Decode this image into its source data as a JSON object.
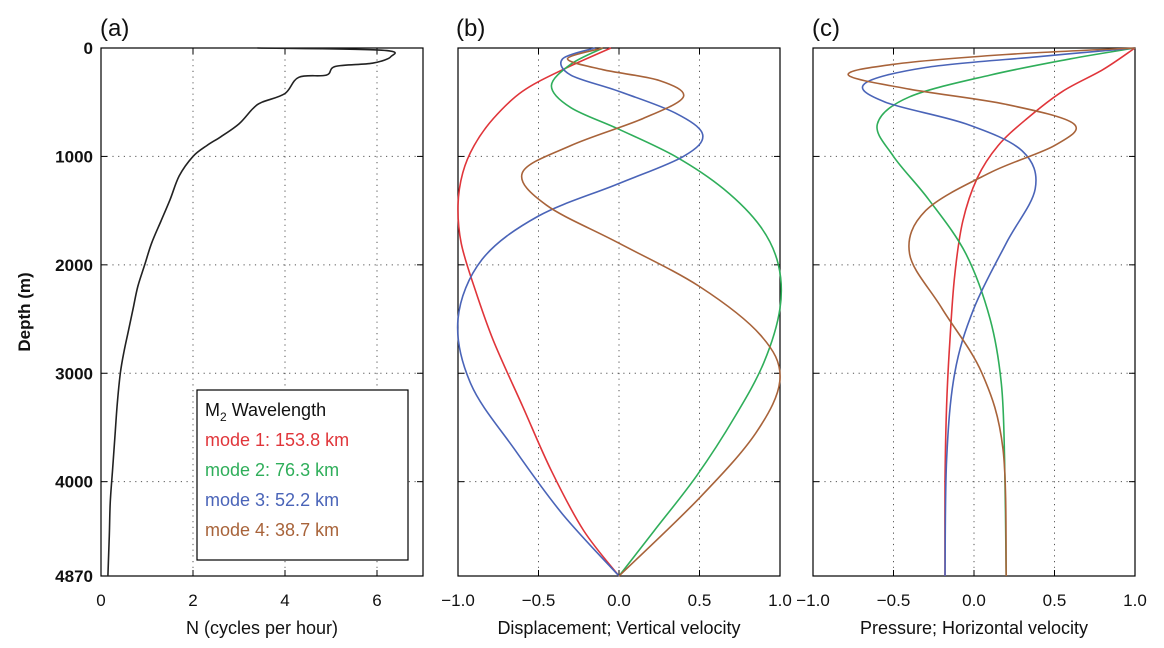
{
  "chart_data": [
    {
      "type": "line",
      "panel_label": "(a)",
      "xlabel": "N (cycles per hour)",
      "ylabel": "Depth (m)",
      "xlim": [
        0,
        7
      ],
      "ylim": [
        4870,
        0
      ],
      "x_ticks": [
        "0",
        "2",
        "4",
        "6"
      ],
      "x_tick_values": [
        0,
        2,
        4,
        6
      ],
      "y_ticks": [
        "0",
        "1000",
        "2000",
        "3000",
        "4000",
        "4870"
      ],
      "y_tick_values": [
        0,
        1000,
        2000,
        3000,
        4000,
        4870
      ],
      "grid": true,
      "series": [
        {
          "color": "#222222",
          "x": [
            3.4,
            6.1,
            6.3,
            5.9,
            5.1,
            4.9,
            4.3,
            4.0,
            3.5,
            3.3,
            3.0,
            2.6,
            2.3,
            2.0,
            1.7,
            1.5,
            1.3,
            1.1,
            0.95,
            0.8,
            0.7,
            0.6,
            0.5,
            0.42,
            0.35,
            0.3,
            0.25,
            0.2,
            0.18,
            0.15
          ],
          "y": [
            0,
            20,
            80,
            140,
            170,
            250,
            270,
            420,
            500,
            560,
            700,
            820,
            900,
            1000,
            1180,
            1400,
            1600,
            1800,
            2000,
            2200,
            2400,
            2600,
            2800,
            3000,
            3300,
            3600,
            3900,
            4200,
            4500,
            4870
          ]
        }
      ],
      "legend": {
        "position": "bottom-right",
        "title": "M₂ Wavelength",
        "entries": [
          {
            "label": "mode 1: 153.8 km",
            "color": "#e0353a"
          },
          {
            "label": "mode 2: 76.3 km",
            "color": "#2fae5a"
          },
          {
            "label": "mode 3: 52.2 km",
            "color": "#4a64b8"
          },
          {
            "label": "mode 4: 38.7 km",
            "color": "#a8633a"
          }
        ]
      }
    },
    {
      "type": "line",
      "panel_label": "(b)",
      "xlabel": "Displacement; Vertical velocity",
      "xlim": [
        -1,
        1
      ],
      "ylim": [
        4870,
        0
      ],
      "x_ticks": [
        "−1.0",
        "−0.5",
        "0.0",
        "0.5",
        "1.0"
      ],
      "x_tick_values": [
        -1,
        -0.5,
        0,
        0.5,
        1
      ],
      "y_tick_values": [
        0,
        1000,
        2000,
        3000,
        4000,
        4870
      ],
      "grid": true,
      "series": [
        {
          "name": "mode 1",
          "color": "#e0353a",
          "x": [
            -0.05,
            -0.35,
            -0.6,
            -0.78,
            -0.9,
            -0.97,
            -1.0,
            -0.98,
            -0.9,
            -0.78,
            -0.6,
            -0.42,
            -0.22,
            0.0
          ],
          "y": [
            0,
            200,
            400,
            650,
            900,
            1150,
            1450,
            1800,
            2200,
            2700,
            3300,
            3900,
            4450,
            4870
          ]
        },
        {
          "name": "mode 2",
          "color": "#2fae5a",
          "x": [
            -0.1,
            -0.3,
            -0.42,
            -0.3,
            0.0,
            0.35,
            0.65,
            0.88,
            0.99,
            1.0,
            0.9,
            0.72,
            0.48,
            0.22,
            0.0
          ],
          "y": [
            0,
            150,
            350,
            550,
            750,
            1000,
            1300,
            1650,
            2000,
            2400,
            2900,
            3400,
            3950,
            4450,
            4870
          ]
        },
        {
          "name": "mode 3",
          "color": "#4a64b8",
          "x": [
            -0.15,
            -0.35,
            -0.3,
            0.0,
            0.35,
            0.52,
            0.4,
            0.0,
            -0.5,
            -0.85,
            -1.0,
            -0.92,
            -0.65,
            -0.35,
            0.0
          ],
          "y": [
            0,
            100,
            250,
            400,
            600,
            800,
            1000,
            1250,
            1550,
            1950,
            2500,
            3100,
            3700,
            4300,
            4870
          ]
        },
        {
          "name": "mode 4",
          "color": "#a8633a",
          "x": [
            -0.1,
            -0.32,
            -0.1,
            0.25,
            0.4,
            0.15,
            -0.3,
            -0.6,
            -0.45,
            0.0,
            0.5,
            0.88,
            1.0,
            0.85,
            0.5,
            0.0
          ],
          "y": [
            0,
            100,
            200,
            300,
            450,
            650,
            900,
            1150,
            1450,
            1800,
            2200,
            2650,
            3050,
            3550,
            4150,
            4870
          ]
        }
      ]
    },
    {
      "type": "line",
      "panel_label": "(c)",
      "xlabel": "Pressure; Horizontal velocity",
      "xlim": [
        -1,
        1
      ],
      "ylim": [
        4870,
        0
      ],
      "x_ticks": [
        "−1.0",
        "−0.5",
        "0.0",
        "0.5",
        "1.0"
      ],
      "x_tick_values": [
        -1,
        -0.5,
        0,
        0.5,
        1
      ],
      "y_tick_values": [
        0,
        1000,
        2000,
        3000,
        4000,
        4870
      ],
      "grid": true,
      "series": [
        {
          "name": "mode 1",
          "color": "#e0353a",
          "x": [
            1.0,
            0.8,
            0.55,
            0.33,
            0.15,
            0.02,
            -0.07,
            -0.12,
            -0.15,
            -0.17,
            -0.18,
            -0.18
          ],
          "y": [
            0,
            200,
            400,
            650,
            900,
            1200,
            1600,
            2100,
            2700,
            3300,
            4000,
            4870
          ]
        },
        {
          "name": "mode 2",
          "color": "#2fae5a",
          "x": [
            1.0,
            0.6,
            0.1,
            -0.4,
            -0.6,
            -0.5,
            -0.28,
            -0.05,
            0.1,
            0.17,
            0.19,
            0.2
          ],
          "y": [
            0,
            100,
            250,
            450,
            700,
            1000,
            1400,
            1900,
            2500,
            3100,
            3800,
            4870
          ]
        },
        {
          "name": "mode 3",
          "color": "#4a64b8",
          "x": [
            1.0,
            0.4,
            -0.3,
            -0.68,
            -0.55,
            -0.05,
            0.3,
            0.38,
            0.2,
            0.0,
            -0.12,
            -0.17,
            -0.18
          ],
          "y": [
            0,
            80,
            180,
            330,
            500,
            700,
            950,
            1300,
            1800,
            2400,
            3000,
            3800,
            4870
          ]
        },
        {
          "name": "mode 4",
          "color": "#a8633a",
          "x": [
            1.0,
            0.2,
            -0.5,
            -0.78,
            -0.4,
            0.2,
            0.62,
            0.5,
            0.1,
            -0.3,
            -0.4,
            -0.2,
            0.05,
            0.18,
            0.2
          ],
          "y": [
            0,
            60,
            150,
            250,
            380,
            520,
            700,
            900,
            1150,
            1500,
            1900,
            2400,
            3000,
            3700,
            4870
          ]
        }
      ]
    }
  ]
}
